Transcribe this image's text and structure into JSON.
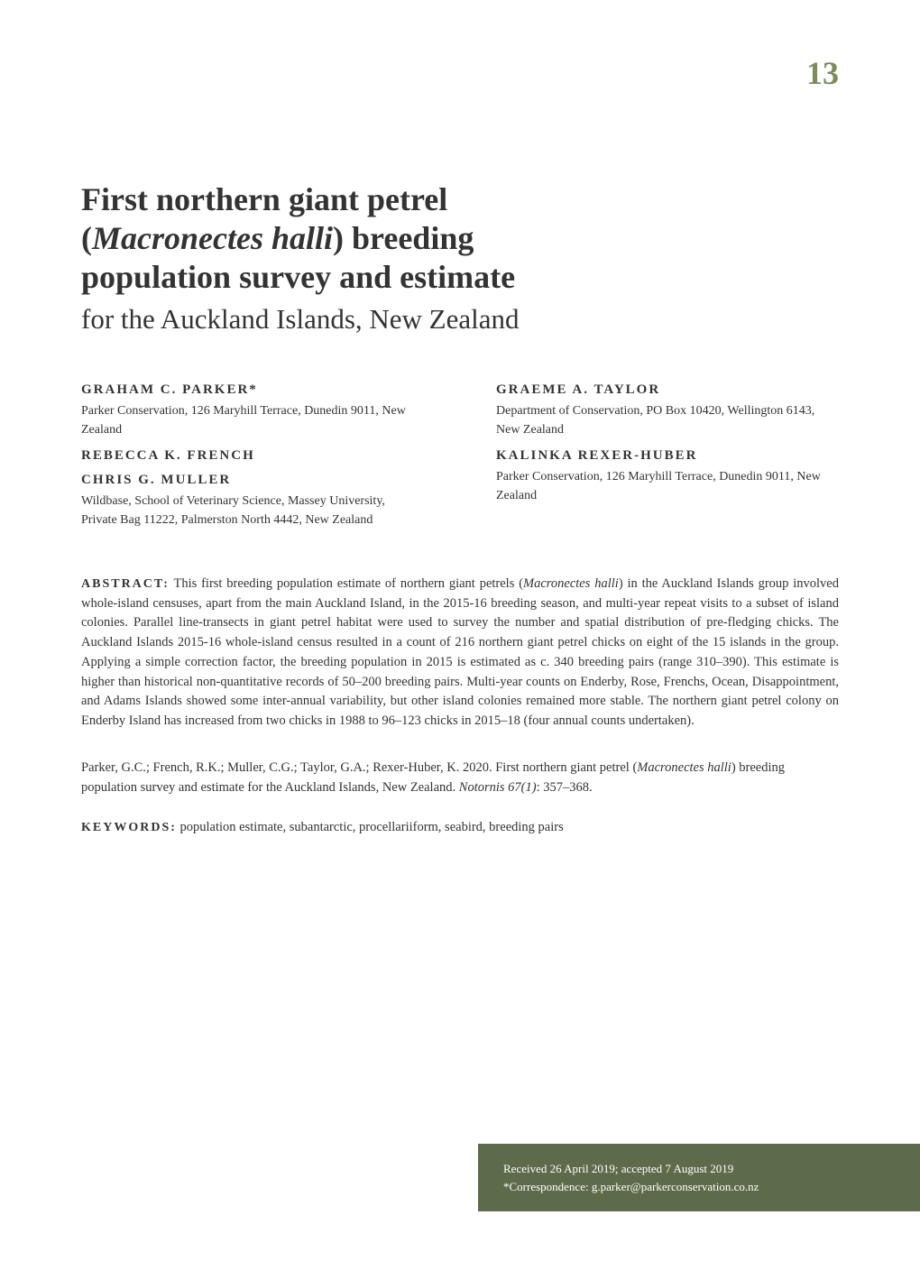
{
  "chapter_number": "13",
  "title": {
    "line1": "First northern giant petrel",
    "line2_open": "(",
    "line2_species": "Macronectes halli",
    "line2_close": ") breeding",
    "line3": "population survey and estimate",
    "subtitle": "for the Auckland Islands, New Zealand"
  },
  "authors": {
    "column1": [
      {
        "name": "GRAHAM C. PARKER*",
        "affiliation": "Parker Conservation, 126 Maryhill Terrace, Dunedin 9011, New Zealand"
      },
      {
        "name": "REBECCA K. FRENCH",
        "affiliation": ""
      },
      {
        "name": "CHRIS G. MULLER",
        "affiliation": "Wildbase, School of Veterinary Science, Massey University, Private Bag 11222, Palmerston North 4442, New Zealand"
      }
    ],
    "column2": [
      {
        "name": "GRAEME A. TAYLOR",
        "affiliation": "Department of Conservation, PO Box 10420, Wellington 6143, New Zealand"
      },
      {
        "name": "KALINKA REXER-HUBER",
        "affiliation": "Parker Conservation, 126 Maryhill Terrace, Dunedin 9011, New Zealand"
      }
    ]
  },
  "abstract": {
    "label": "ABSTRACT:",
    "text_part1": " This first breeding population estimate of northern giant petrels (",
    "species": "Macronectes halli",
    "text_part2": ") in the Auckland Islands group involved whole-island censuses, apart from the main Auckland Island, in the 2015-16 breeding season, and multi-year repeat visits to a subset of island colonies. Parallel line-transects in giant petrel habitat were used to survey the number and spatial distribution of pre-fledging chicks. The Auckland Islands 2015-16 whole-island census resulted in a count of 216 northern giant petrel chicks on eight of the 15 islands in the group. Applying a simple correction factor, the breeding population in 2015 is estimated as c. 340 breeding pairs (range 310–390). This estimate is higher than historical non-quantitative records of 50–200 breeding pairs. Multi-year counts on Enderby, Rose, Frenchs, Ocean, Disappointment, and Adams Islands showed some inter-annual variability, but other island colonies remained more stable. The northern giant petrel colony on Enderby Island has increased from two chicks in 1988 to 96–123 chicks in 2015–18 (four annual counts undertaken)."
  },
  "citation": {
    "text_part1": "Parker, G.C.; French, R.K.; Muller, C.G.; Taylor, G.A.; Rexer-Huber, K. 2020. First northern giant petrel (",
    "species": "Macronectes halli",
    "text_part2": ") breeding population survey and estimate for the Auckland Islands, New Zealand. ",
    "journal": "Notornis 67(1)",
    "pages": ": 357–368."
  },
  "keywords": {
    "label": "KEYWORDS:",
    "text": " population estimate, subantarctic, procellariiform, seabird, breeding pairs"
  },
  "footer": {
    "line1": "Received 26 April 2019; accepted 7 August 2019",
    "line2": "*Correspondence: g.parker@parkerconservation.co.nz"
  },
  "colors": {
    "accent_green": "#7a8c5a",
    "footer_bg": "#5d6b4a",
    "text_primary": "#333333",
    "background": "#ffffff",
    "footer_text": "#ffffff"
  }
}
